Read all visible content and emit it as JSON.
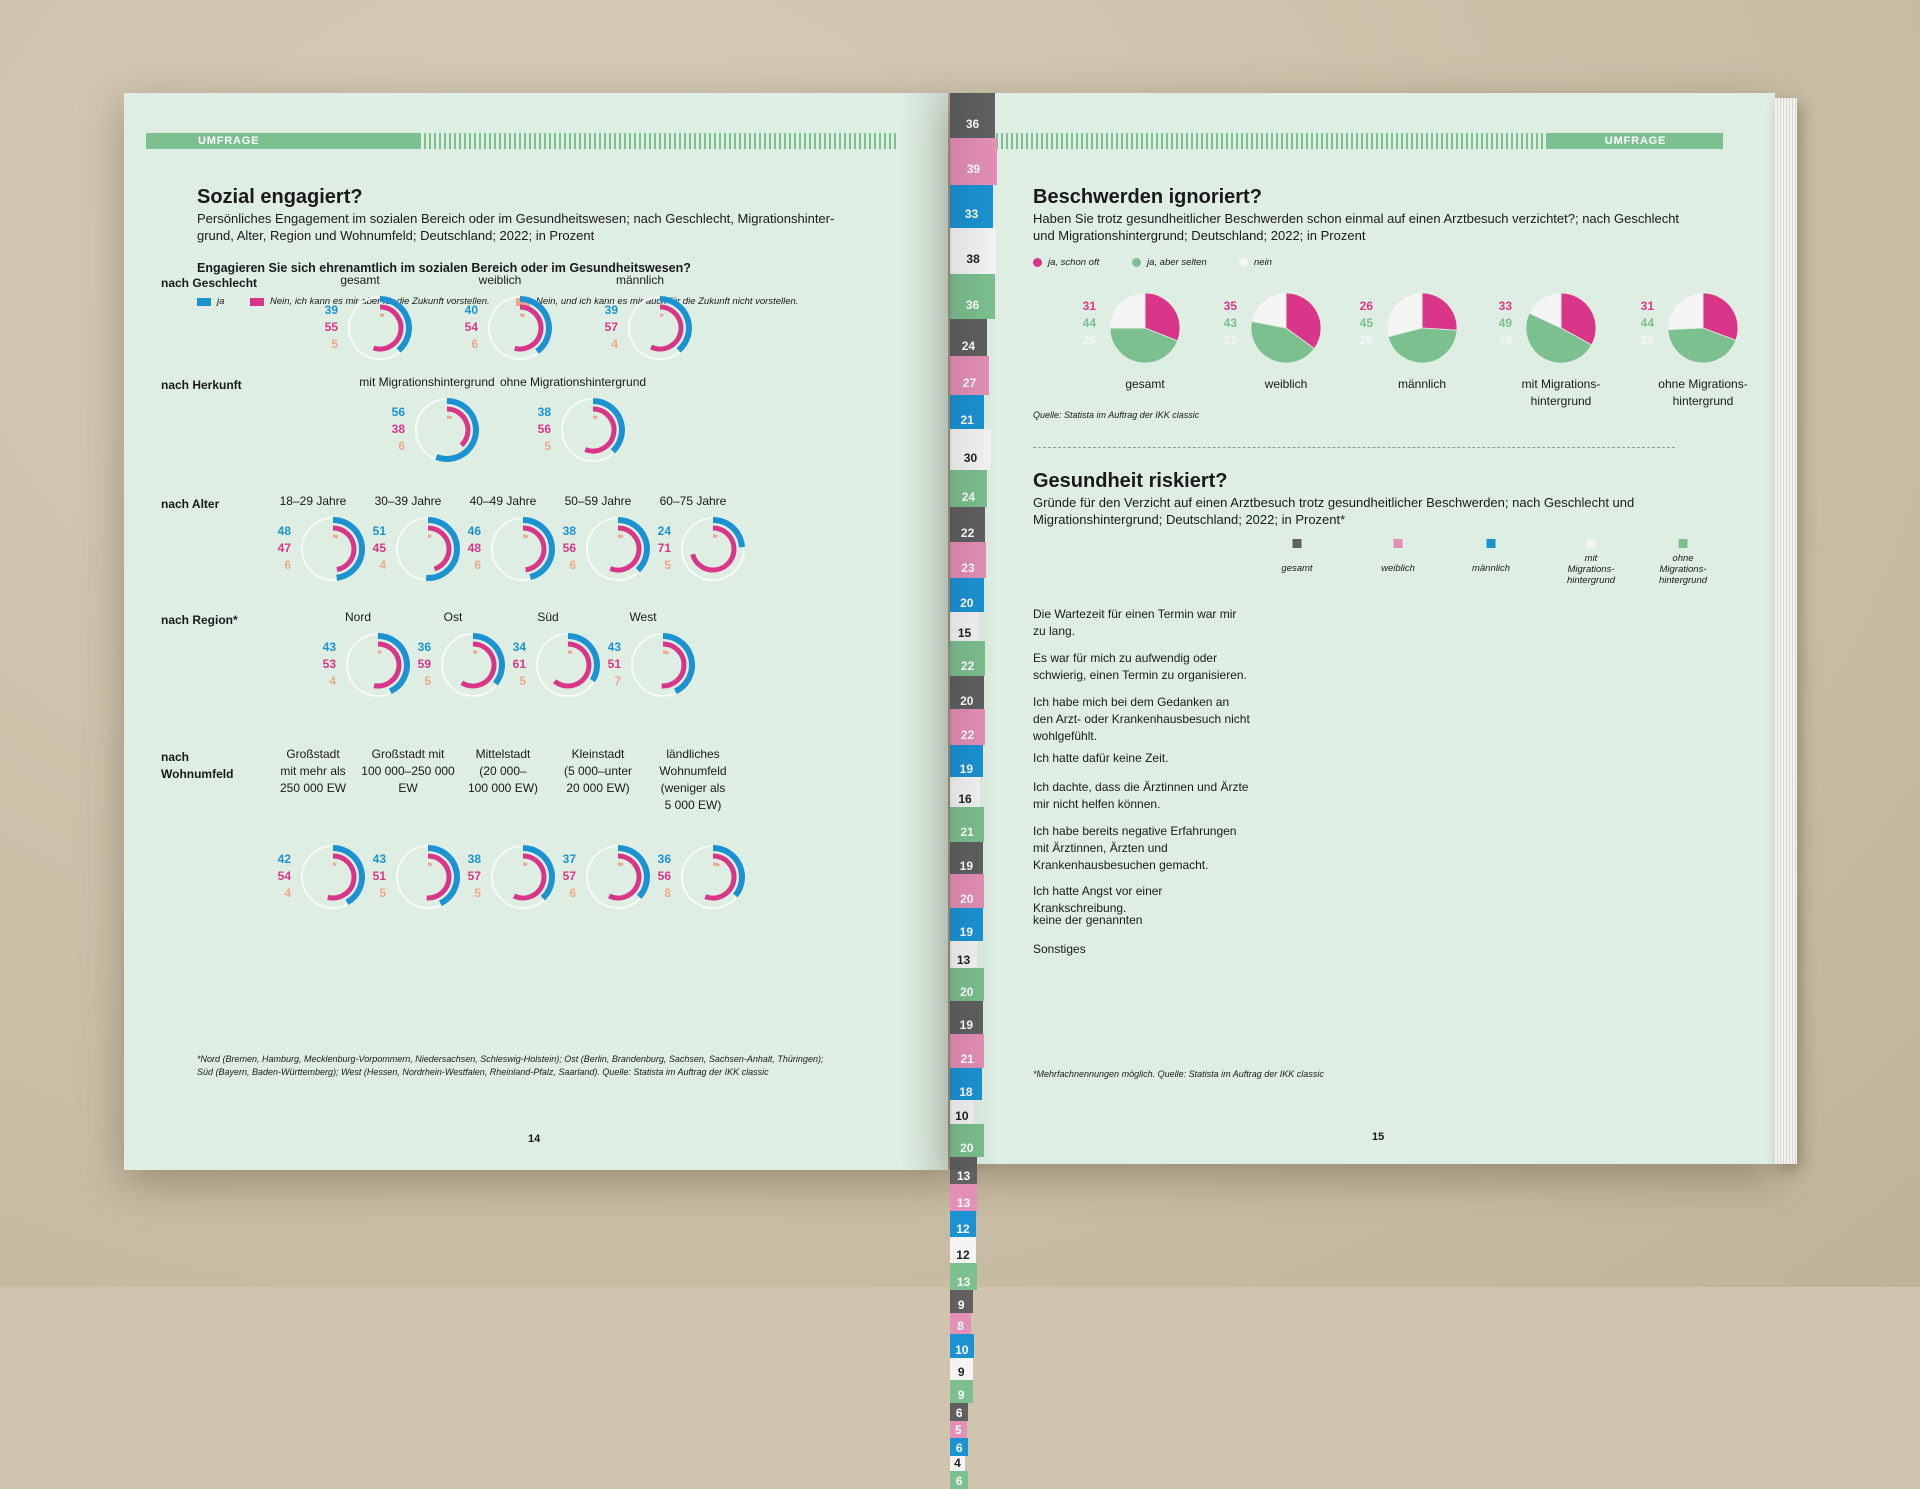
{
  "left": {
    "band": "UMFRAGE",
    "title": "Sozial engagiert?",
    "subtitle_l1": "Persönliches Engagement im sozialen Bereich oder im Gesundheitswesen; nach Geschlecht, Migrationshinter-",
    "subtitle_l2": "grund, Alter, Region und Wohnumfeld; Deutschland; 2022; in Prozent",
    "question": "Engagieren Sie sich ehrenamtlich im sozialen Bereich oder im Gesundheitswesen?",
    "legend": [
      "ja",
      "Nein, ich kann es mir aber für die Zukunft vorstellen.",
      "Nein, und ich kann es mir auch für die Zukunft nicht vorstellen."
    ],
    "footnote_l1": "*Nord (Bremen, Hamburg, Mecklenburg-Vorpommern, Niedersachsen, Schleswig-Holstein); Ost (Berlin, Brandenburg, Sachsen, Sachsen-Anhalt, Thüringen);",
    "footnote_l2": "Süd (Bayern, Baden-Württemberg); West (Hessen, Nordrhein-Westfalen, Rheinland-Pfalz, Saarland). Quelle: Statista im Auftrag der IKK classic",
    "page_number": "14"
  },
  "right": {
    "band": "UMFRAGE",
    "title1": "Beschwerden ignoriert?",
    "sub1_l1": "Haben Sie trotz gesundheitlicher Beschwerden schon einmal auf einen Arztbesuch verzichtet?; nach Geschlecht",
    "sub1_l2": "und Migrationshintergrund; Deutschland; 2022; in Prozent",
    "legend": [
      "ja, schon oft",
      "ja, aber selten",
      "nein"
    ],
    "source1": "Quelle: Statista im Auftrag der IKK classic",
    "title2": "Gesundheit riskiert?",
    "sub2_l1": "Gründe für den Verzicht auf einen Arztbesuch trotz gesundheitlicher Beschwerden; nach Geschlecht und",
    "sub2_l2": "Migrationshintergrund; Deutschland; 2022;  in Prozent*",
    "footnote": "*Mehrfachnennungen möglich. Quelle: Statista im Auftrag der IKK classic",
    "page_number": "15"
  },
  "chart_data": [
    {
      "type": "radial-bar",
      "series_names": [
        "ja",
        "Nein, ich kann es mir aber für die Zukunft vorstellen.",
        "Nein, und ich kann es mir auch für die Zukunft nicht vorstellen."
      ],
      "colors": [
        "#1b93d3",
        "#d9368a",
        "#f2a78a"
      ],
      "groups": [
        {
          "label": "nach Geschlecht",
          "label_l2": "",
          "items": [
            {
              "label": "gesamt",
              "values": [
                39,
                55,
                5
              ]
            },
            {
              "label": "weiblich",
              "values": [
                40,
                54,
                6
              ]
            },
            {
              "label": "männlich",
              "values": [
                39,
                57,
                4
              ]
            }
          ]
        },
        {
          "label": "nach Herkunft",
          "label_l2": "",
          "items": [
            {
              "label": "mit Migrationshintergrund",
              "values": [
                56,
                38,
                6
              ]
            },
            {
              "label": "ohne Migrationshintergrund",
              "values": [
                38,
                56,
                5
              ]
            }
          ]
        },
        {
          "label": "nach Alter",
          "label_l2": "",
          "items": [
            {
              "label": "18–29 Jahre",
              "values": [
                48,
                47,
                6
              ]
            },
            {
              "label": "30–39 Jahre",
              "values": [
                51,
                45,
                4
              ]
            },
            {
              "label": "40–49 Jahre",
              "values": [
                46,
                48,
                6
              ]
            },
            {
              "label": "50–59 Jahre",
              "values": [
                38,
                56,
                6
              ]
            },
            {
              "label": "60–75 Jahre",
              "values": [
                24,
                71,
                5
              ]
            }
          ]
        },
        {
          "label": "nach Region*",
          "label_l2": "",
          "items": [
            {
              "label": "Nord",
              "values": [
                43,
                53,
                4
              ]
            },
            {
              "label": "Ost",
              "values": [
                36,
                59,
                5
              ]
            },
            {
              "label": "Süd",
              "values": [
                34,
                61,
                5
              ]
            },
            {
              "label": "West",
              "values": [
                43,
                51,
                7
              ]
            }
          ]
        },
        {
          "label": "nach",
          "label_l2": "Wohnumfeld",
          "items": [
            {
              "label": "Großstadt mit mehr als 250 000 EW",
              "lines": [
                "Großstadt",
                "mit mehr als",
                "250 000 EW"
              ],
              "values": [
                42,
                54,
                4
              ]
            },
            {
              "label": "Großstadt mit 100 000–250 000 EW",
              "lines": [
                "Großstadt mit",
                "100 000–250 000",
                "EW"
              ],
              "values": [
                43,
                51,
                5
              ]
            },
            {
              "label": "Mittelstadt (20 000–100 000 EW)",
              "lines": [
                "Mittelstadt",
                "(20 000–",
                "100 000 EW)"
              ],
              "values": [
                38,
                57,
                5
              ]
            },
            {
              "label": "Kleinstadt (5 000–unter 20 000 EW)",
              "lines": [
                "Kleinstadt",
                "(5 000–unter",
                "20 000 EW)"
              ],
              "values": [
                37,
                57,
                6
              ]
            },
            {
              "label": "ländliches Wohnumfeld (weniger als 5 000 EW)",
              "lines": [
                "ländliches",
                "Wohnumfeld",
                "(weniger als",
                "5 000 EW)"
              ],
              "values": [
                36,
                56,
                8
              ]
            }
          ]
        }
      ]
    },
    {
      "type": "pie",
      "series_names": [
        "ja, schon oft",
        "ja, aber selten",
        "nein"
      ],
      "colors": [
        "#d9368a",
        "#7cc08f",
        "#f5f5f5"
      ],
      "items": [
        {
          "label": "gesamt",
          "lines": [
            "gesamt"
          ],
          "values": [
            31,
            44,
            25
          ]
        },
        {
          "label": "weiblich",
          "lines": [
            "weiblich"
          ],
          "values": [
            35,
            43,
            22
          ]
        },
        {
          "label": "männlich",
          "lines": [
            "männlich"
          ],
          "values": [
            26,
            45,
            29
          ]
        },
        {
          "label": "mit Migrationshintergrund",
          "lines": [
            "mit Migrations-",
            "hintergrund"
          ],
          "values": [
            33,
            49,
            18
          ]
        },
        {
          "label": "ohne Migrationshintergrund",
          "lines": [
            "ohne Migrations-",
            "hintergrund"
          ],
          "values": [
            31,
            44,
            26
          ]
        }
      ]
    },
    {
      "type": "table",
      "columns": [
        {
          "label": "gesamt",
          "lines": [
            "gesamt"
          ],
          "color": "#606060"
        },
        {
          "label": "weiblich",
          "lines": [
            "weiblich"
          ],
          "color": "#e48fb6"
        },
        {
          "label": "männlich",
          "lines": [
            "männlich"
          ],
          "color": "#1b93d3"
        },
        {
          "label": "mit Migrationshintergrund",
          "lines": [
            "mit",
            "Migrations-",
            "hintergrund"
          ],
          "color": "#f4f4f4"
        },
        {
          "label": "ohne Migrationshintergrund",
          "lines": [
            "ohne",
            "Migrations-",
            "hintergrund"
          ],
          "color": "#7cc08f"
        }
      ],
      "rows": [
        {
          "label": "Die Wartezeit für einen Termin war mir zu lang.",
          "lines": [
            "Die Wartezeit für einen Termin war mir",
            "zu lang."
          ],
          "values": [
            36,
            39,
            33,
            38,
            36
          ]
        },
        {
          "label": "Es war für mich zu aufwendig oder schwierig, einen Termin zu organisieren.",
          "lines": [
            "Es war für mich zu aufwendig oder",
            "schwierig, einen Termin zu organisieren."
          ],
          "values": [
            24,
            27,
            21,
            30,
            24
          ]
        },
        {
          "label": "Ich habe mich bei dem Gedanken an den Arzt- oder Krankenhausbesuch nicht wohlgefühlt.",
          "lines": [
            "Ich habe mich bei dem Gedanken an",
            "den Arzt- oder Krankenhausbesuch nicht",
            "wohlgefühlt."
          ],
          "values": [
            22,
            23,
            20,
            15,
            22
          ]
        },
        {
          "label": "Ich hatte dafür keine Zeit.",
          "lines": [
            "Ich hatte dafür keine Zeit."
          ],
          "values": [
            20,
            22,
            19,
            16,
            21
          ]
        },
        {
          "label": "Ich dachte, dass die Ärztinnen und Ärzte mir nicht helfen können.",
          "lines": [
            "Ich dachte, dass die Ärztinnen und Ärzte",
            "mir nicht helfen können."
          ],
          "values": [
            19,
            20,
            19,
            13,
            20
          ]
        },
        {
          "label": "Ich habe bereits negative Erfahrungen mit Ärztinnen, Ärzten und Krankenhausbesuchen gemacht.",
          "lines": [
            "Ich habe bereits negative Erfahrungen",
            "mit Ärztinnen, Ärzten und",
            "Krankenhausbesuchen gemacht."
          ],
          "values": [
            19,
            21,
            18,
            10,
            20
          ]
        },
        {
          "label": "Ich hatte Angst vor einer Krankschreibung.",
          "lines": [
            "Ich hatte Angst vor einer Krankschreibung."
          ],
          "values": [
            13,
            13,
            12,
            12,
            13
          ]
        },
        {
          "label": "keine der genannten",
          "lines": [
            "keine der genannten"
          ],
          "values": [
            9,
            8,
            10,
            9,
            9
          ]
        },
        {
          "label": "Sonstiges",
          "lines": [
            "Sonstiges"
          ],
          "values": [
            6,
            5,
            6,
            4,
            6
          ]
        }
      ]
    }
  ]
}
